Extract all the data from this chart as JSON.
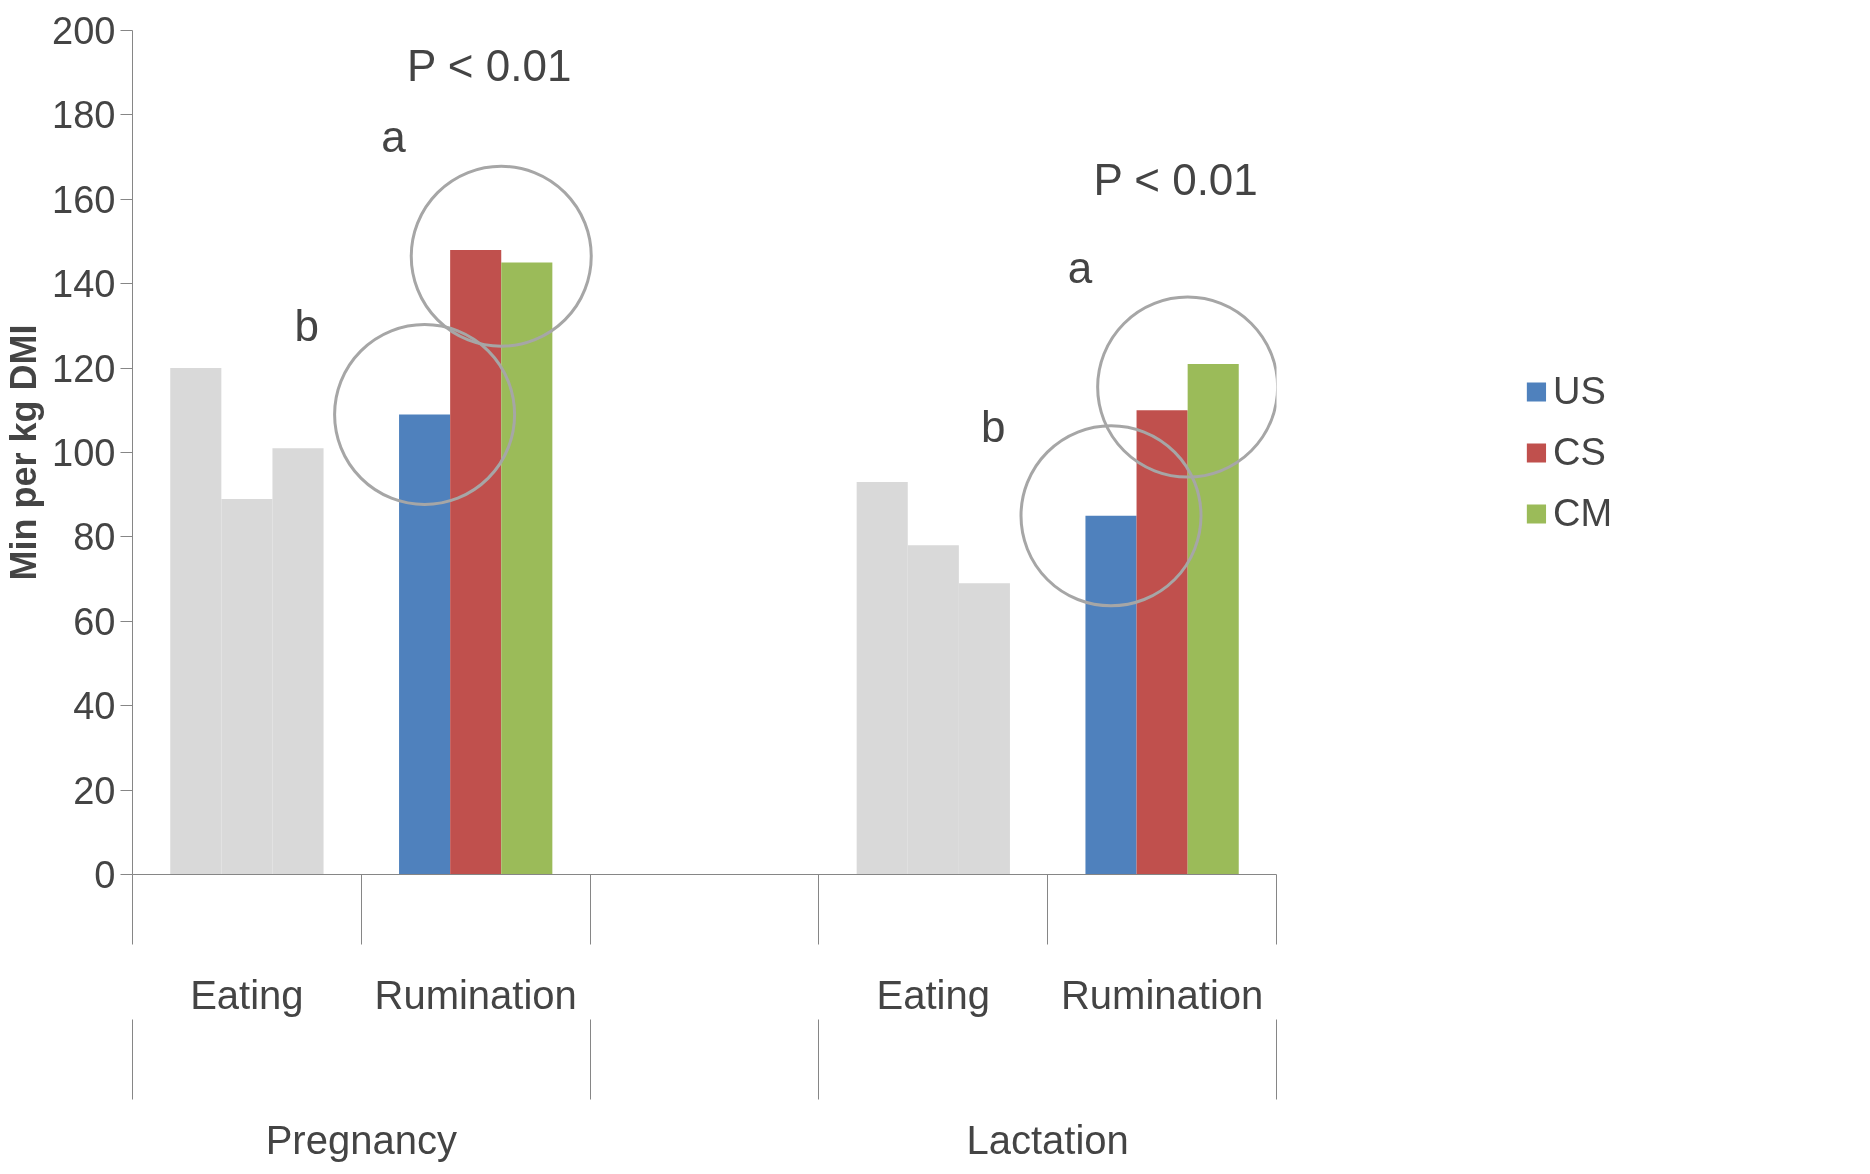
{
  "chart_data": {
    "type": "bar",
    "ylabel": "Min per kg DMI",
    "categories": [
      "Eating",
      "Rumination",
      null,
      "Eating",
      "Rumination"
    ],
    "series": [
      {
        "name": "US",
        "color": "#4f81bd",
        "colors": [
          "#d9d9d9",
          "#4f81bd",
          "#4f81bd",
          "#d9d9d9",
          "#4f81bd"
        ],
        "values": [
          120,
          109,
          null,
          93,
          85
        ]
      },
      {
        "name": "CS",
        "color": "#c0504d",
        "colors": [
          "#d9d9d9",
          "#c0504d",
          "#c0504d",
          "#d9d9d9",
          "#c0504d"
        ],
        "values": [
          89,
          148,
          null,
          78,
          110
        ]
      },
      {
        "name": "CM",
        "color": "#9bbb59",
        "colors": [
          "#d9d9d9",
          "#9bbb59",
          "#9bbb59",
          "#d9d9d9",
          "#9bbb59"
        ],
        "values": [
          101,
          145,
          null,
          69,
          121
        ]
      }
    ],
    "ylim": [
      0,
      200
    ],
    "yticks": [
      0,
      20,
      40,
      60,
      80,
      100,
      120,
      140,
      160,
      180,
      200
    ],
    "annotations": [
      "P < 0.01",
      "a",
      "b",
      "P < 0.01",
      "a",
      "b",
      "Pregnancy",
      "Lactation"
    ],
    "grid": false,
    "legend": "right"
  }
}
